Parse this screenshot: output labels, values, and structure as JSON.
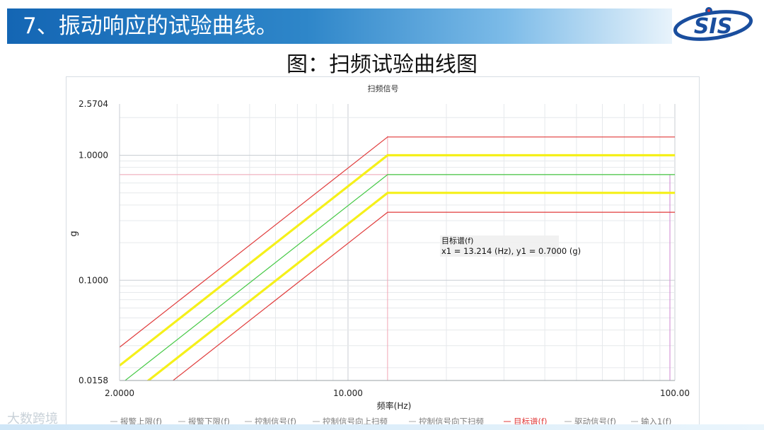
{
  "header": {
    "title": "7、振动响应的试验曲线。",
    "logo_text": "SIS"
  },
  "figure_title": "图：扫频试验曲线图",
  "watermark": "大数跨境",
  "chart_data": {
    "type": "line",
    "title": "扫频信号",
    "xlabel": "频率(Hz)",
    "ylabel": "g",
    "x_scale": "log",
    "y_scale": "log",
    "xlim": [
      2.0,
      100.0
    ],
    "ylim": [
      0.0158,
      2.5704
    ],
    "x_ticks": [
      2.0,
      10.0,
      100.0
    ],
    "x_tick_labels": [
      "2.0000",
      "10.000",
      "100.00"
    ],
    "y_ticks": [
      0.0158,
      0.1,
      1.0,
      2.5704
    ],
    "y_tick_labels": [
      "0.0158",
      "0.1000",
      "1.0000",
      "2.5704"
    ],
    "grid": true,
    "breakpoint_hz": 13.214,
    "series": [
      {
        "name": "报警上限(f)",
        "color": "#e03b3b",
        "width": 1.2,
        "x": [
          2.0,
          13.214,
          100.0
        ],
        "y": [
          0.02913,
          1.4,
          1.4
        ]
      },
      {
        "name": "报警下限(f)",
        "color": "#e03b3b",
        "width": 1.2,
        "x": [
          2.0,
          13.214,
          100.0
        ],
        "y": [
          0.00729,
          0.35,
          0.35
        ]
      },
      {
        "name": "控制信号向上扫频",
        "color": "#f5f01a",
        "width": 3.2,
        "x": [
          2.0,
          13.214,
          100.0
        ],
        "y": [
          0.02079,
          1.0,
          1.0
        ]
      },
      {
        "name": "控制信号向下扫频",
        "color": "#f5f01a",
        "width": 3.2,
        "x": [
          2.0,
          13.214,
          100.0
        ],
        "y": [
          0.01041,
          0.5,
          0.5
        ]
      },
      {
        "name": "控制信号(f)",
        "color": "#43c843",
        "width": 1.2,
        "x": [
          2.0,
          13.214,
          100.0
        ],
        "y": [
          0.01457,
          0.7,
          0.7
        ]
      }
    ],
    "legend": [
      {
        "label": "报警上限(f)",
        "color": "#7a7a7a"
      },
      {
        "label": "报警下限(f)",
        "color": "#7a7a7a"
      },
      {
        "label": "控制信号(f)",
        "color": "#7a7a7a"
      },
      {
        "label": "控制信号向上扫频",
        "color": "#7a7a7a"
      },
      {
        "label": "控制信号向下扫频",
        "color": "#7a7a7a"
      },
      {
        "label": "目标谱(f)",
        "color": "#e03b3b"
      },
      {
        "label": "驱动信号(f)",
        "color": "#7a7a7a"
      },
      {
        "label": "输入1(f)",
        "color": "#7a7a7a"
      }
    ],
    "legend_position": "bottom",
    "cursor": {
      "x": 13.214,
      "y": 0.7,
      "color": "#f2a5b5"
    },
    "annotation": {
      "title": "目标谱(f)",
      "text": "x1 = 13.214 (Hz), y1 = 0.7000 (g)"
    }
  }
}
